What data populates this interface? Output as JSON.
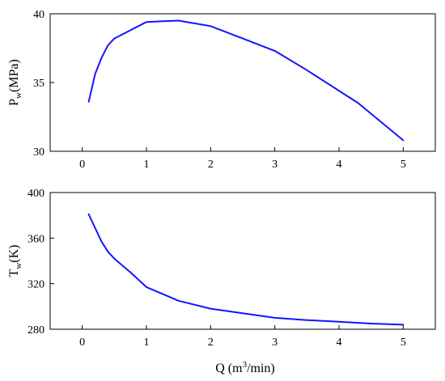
{
  "colors": {
    "series": "#1414ff",
    "axis": "#000000"
  },
  "chart_data": [
    {
      "type": "line",
      "ylabel_main": "P",
      "ylabel_sub": "w",
      "ylabel_unit": "(MPa)",
      "xlim": [
        -0.5,
        5.5
      ],
      "ylim": [
        30,
        40
      ],
      "x_ticks": [
        0,
        1,
        2,
        3,
        4,
        5
      ],
      "y_ticks": [
        30,
        35,
        40
      ],
      "grid": false,
      "x": [
        0.1,
        0.15,
        0.2,
        0.3,
        0.4,
        0.5,
        0.75,
        1.0,
        1.25,
        1.5,
        2.0,
        2.5,
        3.0,
        3.5,
        4.3,
        5.0
      ],
      "y": [
        33.6,
        34.6,
        35.6,
        36.8,
        37.7,
        38.2,
        38.8,
        39.4,
        39.45,
        39.5,
        39.1,
        38.2,
        37.3,
        35.9,
        33.5,
        30.8
      ]
    },
    {
      "type": "line",
      "ylabel_main": "T",
      "ylabel_sub": "w",
      "ylabel_unit": "(K)",
      "xlim": [
        -0.5,
        5.5
      ],
      "ylim": [
        280,
        400
      ],
      "x_ticks": [
        0,
        1,
        2,
        3,
        4,
        5
      ],
      "y_ticks": [
        280,
        320,
        360,
        400
      ],
      "grid": false,
      "x": [
        0.1,
        0.2,
        0.3,
        0.4,
        0.5,
        0.75,
        1.0,
        1.5,
        2.0,
        2.5,
        3.0,
        3.5,
        4.0,
        4.5,
        5.0
      ],
      "y": [
        381,
        369,
        357,
        348,
        342,
        330,
        317,
        305,
        298,
        294,
        290,
        288,
        286.5,
        285,
        284
      ]
    }
  ],
  "xlabel_prefix": "Q (m",
  "xlabel_sup": "3",
  "xlabel_suffix": "/min)"
}
